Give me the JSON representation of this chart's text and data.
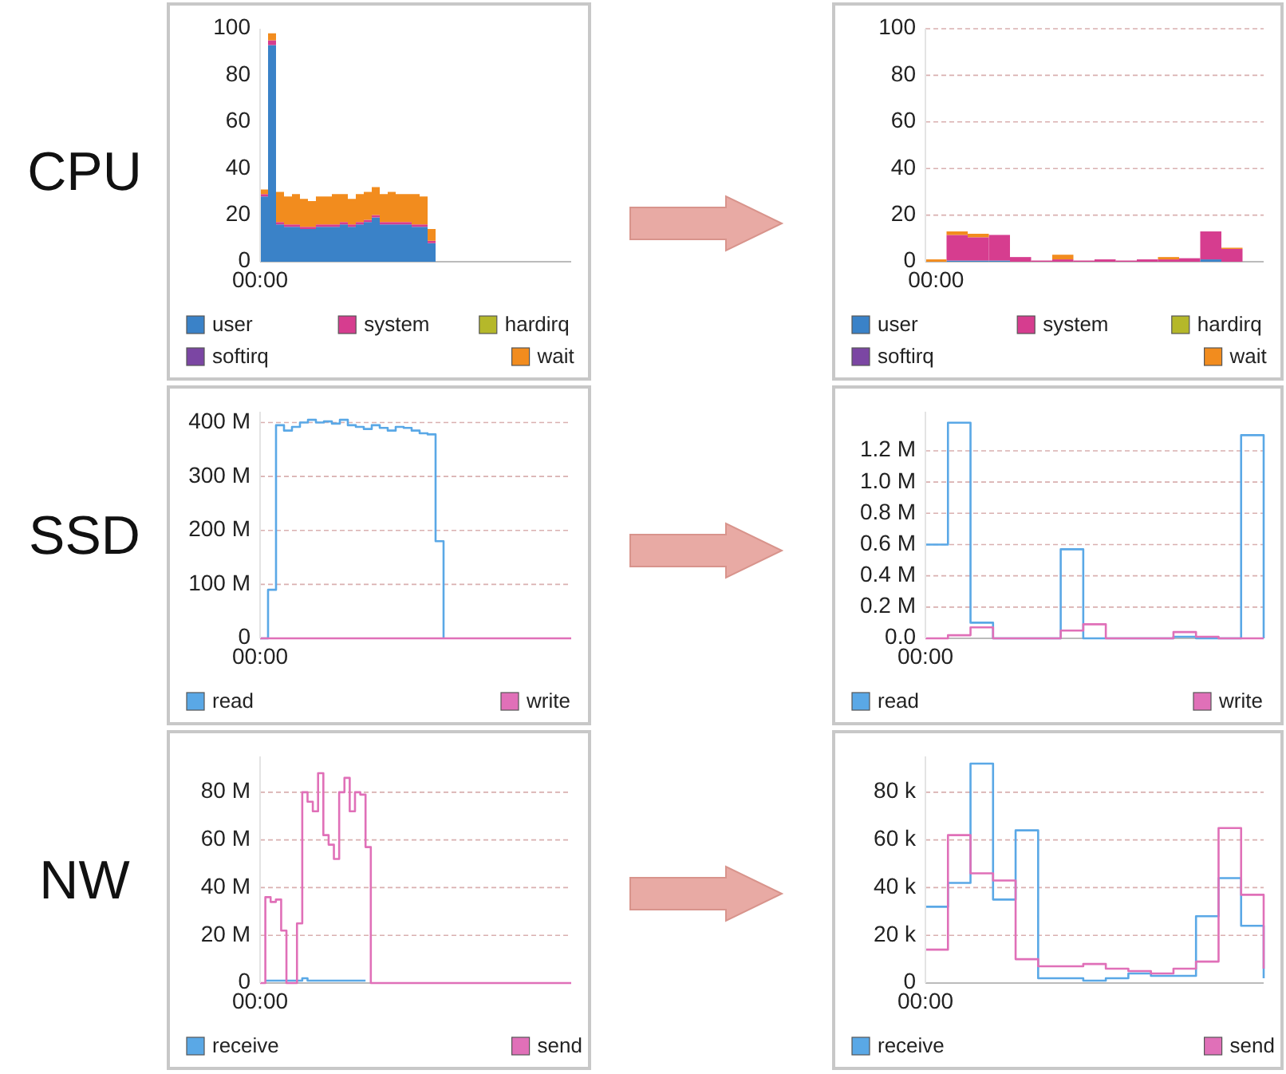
{
  "chart_data": [
    {
      "type": "area",
      "stacked": true,
      "title": "CPU",
      "legend": "bottom",
      "ylim": [
        0,
        100
      ],
      "yticks": [
        0,
        20,
        40,
        60,
        80,
        100
      ],
      "categories": [
        "00:00",
        null,
        null,
        null,
        null,
        null,
        null,
        null,
        null,
        null,
        null,
        null,
        null,
        null,
        null,
        null,
        null,
        null,
        null,
        null,
        null,
        null,
        null,
        null,
        null,
        null,
        null,
        null,
        null,
        null,
        null,
        null,
        null,
        null,
        null,
        null,
        null,
        null,
        null,
        null
      ],
      "series": [
        {
          "name": "user",
          "color": "#3a82c8",
          "values": [
            28,
            93,
            16,
            15,
            15,
            14,
            14,
            15,
            15,
            15,
            16,
            15,
            16,
            17,
            19,
            16,
            16,
            16,
            16,
            15,
            15,
            8,
            0,
            0,
            0,
            0,
            0,
            0,
            0,
            0,
            0,
            0,
            0,
            0,
            0,
            0,
            0,
            0,
            0,
            0
          ]
        },
        {
          "name": "system",
          "color": "#d63d8f",
          "values": [
            1,
            2,
            1,
            1,
            1,
            1,
            1,
            1,
            1,
            1,
            1,
            1,
            1,
            1,
            1,
            1,
            1,
            1,
            1,
            1,
            1,
            1,
            0,
            0,
            0,
            0,
            0,
            0,
            0,
            0,
            0,
            0,
            0,
            0,
            0,
            0,
            0,
            0,
            0,
            0
          ]
        },
        {
          "name": "hardirq",
          "color": "#b5b82a",
          "values": [
            null,
            null,
            null,
            null,
            null,
            null,
            null,
            null,
            null,
            null,
            null,
            null,
            null,
            null,
            null,
            null,
            null,
            null,
            null,
            null,
            null,
            null,
            null,
            null,
            null,
            null,
            null,
            null,
            null,
            null,
            null,
            null,
            null,
            null,
            null,
            null,
            null,
            null,
            null,
            null
          ]
        },
        {
          "name": "softirq",
          "color": "#7b46a3",
          "values": [
            null,
            null,
            null,
            null,
            null,
            null,
            null,
            null,
            null,
            null,
            null,
            null,
            null,
            null,
            null,
            null,
            null,
            null,
            null,
            null,
            null,
            null,
            null,
            null,
            null,
            null,
            null,
            null,
            null,
            null,
            null,
            null,
            null,
            null,
            null,
            null,
            null,
            null,
            null,
            null
          ]
        },
        {
          "name": "wait",
          "color": "#f28c1e",
          "values": [
            2,
            3,
            13,
            12,
            13,
            12,
            11,
            12,
            12,
            13,
            12,
            11,
            12,
            12,
            12,
            12,
            13,
            12,
            12,
            13,
            12,
            5,
            0,
            0,
            0,
            0,
            0,
            0,
            0,
            0,
            0,
            0,
            0,
            0,
            0,
            0,
            0,
            0,
            0,
            0
          ]
        }
      ]
    },
    {
      "type": "bar",
      "stacked": true,
      "legend": "bottom",
      "grid": "y",
      "ylim": [
        0,
        100
      ],
      "yticks": [
        0,
        20,
        40,
        60,
        80,
        100
      ],
      "categories": [
        "00:00",
        null,
        null,
        null,
        null,
        null,
        null,
        null,
        null,
        null,
        null,
        null,
        null,
        null,
        null,
        null
      ],
      "series": [
        {
          "name": "user",
          "color": "#3a82c8",
          "values": [
            0,
            0.5,
            0.5,
            0.5,
            0,
            0,
            0,
            0,
            0,
            0,
            0,
            0,
            0,
            1,
            0,
            0
          ]
        },
        {
          "name": "system",
          "color": "#d63d8f",
          "values": [
            0,
            11,
            10,
            11,
            2,
            0.5,
            1,
            0.5,
            1,
            0.5,
            1,
            1,
            1.5,
            12,
            5.5,
            0
          ]
        },
        {
          "name": "hardirq",
          "color": "#b5b82a",
          "values": [
            null,
            null,
            null,
            null,
            null,
            null,
            null,
            null,
            null,
            null,
            null,
            null,
            null,
            null,
            null,
            null
          ]
        },
        {
          "name": "softirq",
          "color": "#7b46a3",
          "values": [
            null,
            null,
            null,
            null,
            null,
            null,
            null,
            null,
            null,
            null,
            null,
            null,
            null,
            null,
            null,
            null
          ]
        },
        {
          "name": "wait",
          "color": "#f28c1e",
          "values": [
            1,
            1.5,
            1.5,
            0,
            0,
            0,
            2,
            0,
            0,
            0,
            0,
            1,
            0,
            0,
            0.5,
            0
          ]
        }
      ]
    },
    {
      "type": "step",
      "title": "SSD",
      "legend": "bottom",
      "grid": "y",
      "ylim": [
        0,
        420
      ],
      "yticks": [
        0,
        {
          "value": 100,
          "label": "100 M"
        },
        {
          "value": 200,
          "label": "200 M"
        },
        {
          "value": 300,
          "label": "300 M"
        },
        {
          "value": 400,
          "label": "400 M"
        }
      ],
      "categories": [
        "00:00",
        null,
        null,
        null,
        null,
        null,
        null,
        null,
        null,
        null,
        null,
        null,
        null,
        null,
        null,
        null,
        null,
        null,
        null,
        null,
        null,
        null,
        null,
        null,
        null,
        null,
        null,
        null,
        null,
        null,
        null,
        null,
        null,
        null,
        null,
        null,
        null,
        null,
        null,
        null
      ],
      "series": [
        {
          "name": "read",
          "color": "#5aa8e6",
          "values": [
            0,
            90,
            395,
            385,
            392,
            400,
            405,
            400,
            402,
            398,
            405,
            395,
            392,
            388,
            395,
            390,
            385,
            392,
            390,
            385,
            380,
            378,
            180,
            0,
            null,
            null,
            null,
            null,
            null,
            null,
            null,
            null,
            null,
            null,
            null,
            null,
            null,
            null,
            null,
            null
          ]
        },
        {
          "name": "write",
          "color": "#e070b8",
          "values": [
            0,
            0,
            0,
            0,
            0,
            0,
            0,
            0,
            0,
            0,
            0,
            0,
            0,
            0,
            0,
            0,
            0,
            0,
            0,
            0,
            0,
            0,
            0,
            0,
            0,
            0,
            0,
            0,
            0,
            0,
            0,
            0,
            0,
            0,
            0,
            0,
            0,
            0,
            0,
            0
          ]
        }
      ]
    },
    {
      "type": "step",
      "legend": "bottom",
      "grid": "y",
      "ylim": [
        0,
        1.45
      ],
      "yticks": [
        {
          "value": 0,
          "label": "0.0"
        },
        {
          "value": 0.2,
          "label": "0.2 M"
        },
        {
          "value": 0.4,
          "label": "0.4 M"
        },
        {
          "value": 0.6,
          "label": "0.6 M"
        },
        {
          "value": 0.8,
          "label": "0.8 M"
        },
        {
          "value": 1,
          "label": "1.0 M"
        },
        {
          "value": 1.2,
          "label": "1.2 M"
        }
      ],
      "categories": [
        "00:00",
        null,
        null,
        null,
        null,
        null,
        null,
        null,
        null,
        null,
        null,
        null,
        null,
        null,
        null,
        null
      ],
      "series": [
        {
          "name": "read",
          "color": "#5aa8e6",
          "values": [
            0.6,
            1.38,
            0.1,
            0,
            0,
            0,
            0.57,
            0,
            0,
            0,
            0,
            0.01,
            0,
            0,
            1.3,
            0
          ]
        },
        {
          "name": "write",
          "color": "#e070b8",
          "values": [
            0,
            0.02,
            0.07,
            0,
            0,
            0,
            0.05,
            0.09,
            0,
            0,
            0,
            0.04,
            0.01,
            0,
            0,
            0
          ]
        }
      ]
    },
    {
      "type": "step",
      "title": "NW",
      "legend": "bottom",
      "grid": "y",
      "ylim": [
        0,
        95
      ],
      "yticks": [
        0,
        {
          "value": 20,
          "label": "20 M"
        },
        {
          "value": 40,
          "label": "40 M"
        },
        {
          "value": 60,
          "label": "60 M"
        },
        {
          "value": 80,
          "label": "80 M"
        }
      ],
      "categories": [
        "00:00",
        null,
        null,
        null,
        null,
        null,
        null,
        null,
        null,
        null,
        null,
        null,
        null,
        null,
        null,
        null,
        null,
        null,
        null,
        null,
        null,
        null,
        null,
        null,
        null,
        null,
        null,
        null,
        null,
        null,
        null,
        null,
        null,
        null,
        null,
        null,
        null,
        null,
        null,
        null,
        null,
        null,
        null,
        null,
        null,
        null,
        null,
        null,
        null,
        null,
        null,
        null,
        null,
        null,
        null,
        null,
        null,
        null,
        null,
        null
      ],
      "series": [
        {
          "name": "receive",
          "color": "#5aa8e6",
          "values": [
            null,
            1,
            1,
            1,
            1,
            1,
            1,
            1,
            2,
            1,
            1,
            1,
            1,
            1,
            1,
            1,
            1,
            1,
            1,
            1,
            1,
            null,
            null,
            null,
            null,
            null,
            null,
            null,
            null,
            null,
            null,
            null,
            null,
            null,
            null,
            null,
            null,
            null,
            null,
            null,
            null,
            null,
            null,
            null,
            null,
            null,
            null,
            null,
            null,
            null,
            null,
            null,
            null,
            null,
            null,
            null,
            null,
            null,
            null,
            null
          ]
        },
        {
          "name": "send",
          "color": "#e070b8",
          "values": [
            0,
            36,
            34,
            35,
            22,
            0,
            0,
            25,
            80,
            76,
            72,
            88,
            62,
            58,
            52,
            80,
            86,
            72,
            80,
            79,
            57,
            0,
            0,
            0,
            0,
            0,
            0,
            0,
            0,
            0,
            0,
            0,
            0,
            0,
            0,
            0,
            0,
            0,
            0,
            0,
            0,
            0,
            0,
            0,
            0,
            0,
            0,
            0,
            0,
            0,
            0,
            0,
            0,
            0,
            0,
            0,
            0,
            0,
            0,
            0
          ]
        }
      ]
    },
    {
      "type": "step",
      "legend": "bottom",
      "grid": "y",
      "ylim": [
        0,
        95
      ],
      "yticks": [
        0,
        {
          "value": 20,
          "label": "20 k"
        },
        {
          "value": 40,
          "label": "40 k"
        },
        {
          "value": 60,
          "label": "60 k"
        },
        {
          "value": 80,
          "label": "80 k"
        }
      ],
      "categories": [
        "00:00",
        null,
        null,
        null,
        null,
        null,
        null,
        null,
        null,
        null,
        null,
        null,
        null,
        null,
        null,
        null
      ],
      "series": [
        {
          "name": "receive",
          "color": "#5aa8e6",
          "values": [
            32,
            42,
            92,
            35,
            64,
            2,
            2,
            1,
            2,
            4,
            3,
            3,
            28,
            44,
            24,
            2
          ]
        },
        {
          "name": "send",
          "color": "#e070b8",
          "values": [
            14,
            62,
            46,
            43,
            10,
            7,
            7,
            8,
            6,
            5,
            4,
            6,
            9,
            65,
            37,
            6
          ]
        }
      ]
    }
  ]
}
